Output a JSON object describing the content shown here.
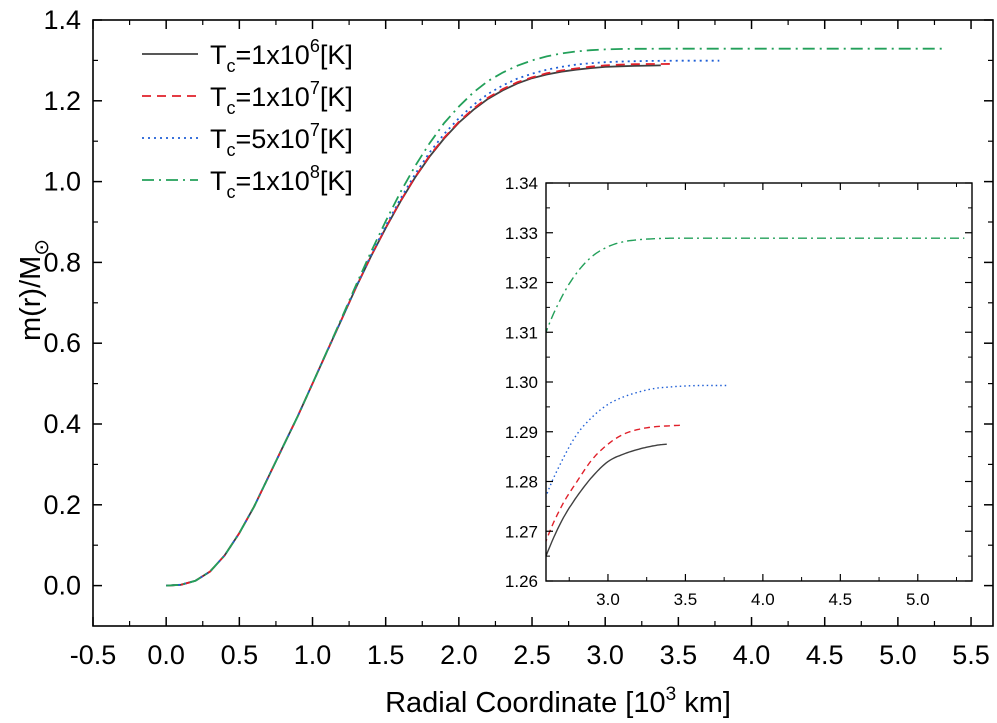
{
  "chart_data": [
    {
      "type": "line",
      "xlabel": {
        "main": "Radial Coordinate [10",
        "sup": "3",
        "tail": " km]"
      },
      "ylabel": {
        "main": "m(r)/M",
        "sub": "⊙"
      },
      "xlim": [
        -0.5,
        5.65
      ],
      "ylim": [
        -0.1,
        1.4
      ],
      "xticks": [
        "-0.5",
        "0.0",
        "0.5",
        "1.0",
        "1.5",
        "2.0",
        "2.5",
        "3.0",
        "3.5",
        "4.0",
        "4.5",
        "5.0",
        "5.5"
      ],
      "yticks": [
        "0.0",
        "0.2",
        "0.4",
        "0.6",
        "0.8",
        "1.0",
        "1.2",
        "1.4"
      ],
      "legend_position": "top-left",
      "series": [
        {
          "legend": {
            "pre": "T",
            "sub": "c",
            "mid": "=1x10",
            "sup": "6",
            "post": "[K]"
          },
          "color": "#404040",
          "dash": "solid",
          "x": [
            0.0,
            0.1,
            0.2,
            0.3,
            0.4,
            0.5,
            0.6,
            0.7,
            0.8,
            0.9,
            1.0,
            1.1,
            1.2,
            1.3,
            1.4,
            1.5,
            1.6,
            1.7,
            1.8,
            1.9,
            2.0,
            2.1,
            2.2,
            2.3,
            2.4,
            2.5,
            2.6,
            2.7,
            2.8,
            2.9,
            3.0,
            3.1,
            3.2,
            3.3,
            3.38
          ],
          "y": [
            0.0,
            0.002,
            0.012,
            0.035,
            0.075,
            0.13,
            0.195,
            0.27,
            0.345,
            0.42,
            0.5,
            0.58,
            0.66,
            0.74,
            0.815,
            0.885,
            0.95,
            1.01,
            1.062,
            1.107,
            1.146,
            1.178,
            1.205,
            1.226,
            1.243,
            1.256,
            1.265,
            1.272,
            1.277,
            1.281,
            1.284,
            1.2855,
            1.2865,
            1.2872,
            1.2875
          ]
        },
        {
          "legend": {
            "pre": "T",
            "sub": "c",
            "mid": "=1x10",
            "sup": "7",
            "post": "[K]"
          },
          "color": "#e0202a",
          "dash": "dashed",
          "x": [
            0.0,
            0.1,
            0.2,
            0.3,
            0.4,
            0.5,
            0.6,
            0.7,
            0.8,
            0.9,
            1.0,
            1.1,
            1.2,
            1.3,
            1.4,
            1.5,
            1.6,
            1.7,
            1.8,
            1.9,
            2.0,
            2.1,
            2.2,
            2.3,
            2.4,
            2.5,
            2.6,
            2.7,
            2.8,
            2.9,
            3.0,
            3.1,
            3.2,
            3.3,
            3.4,
            3.47
          ],
          "y": [
            0.0,
            0.002,
            0.012,
            0.035,
            0.075,
            0.13,
            0.195,
            0.27,
            0.345,
            0.42,
            0.5,
            0.58,
            0.66,
            0.74,
            0.815,
            0.886,
            0.951,
            1.011,
            1.064,
            1.109,
            1.148,
            1.181,
            1.208,
            1.229,
            1.246,
            1.258,
            1.268,
            1.275,
            1.28,
            1.2845,
            1.2875,
            1.2895,
            1.2905,
            1.291,
            1.2912,
            1.2913
          ]
        },
        {
          "legend": {
            "pre": "T",
            "sub": "c",
            "mid": "=5x10",
            "sup": "7",
            "post": "[K]"
          },
          "color": "#1f5fd6",
          "dash": "dotted",
          "x": [
            0.0,
            0.1,
            0.2,
            0.3,
            0.4,
            0.5,
            0.6,
            0.7,
            0.8,
            0.9,
            1.0,
            1.1,
            1.2,
            1.3,
            1.4,
            1.5,
            1.6,
            1.7,
            1.8,
            1.9,
            2.0,
            2.1,
            2.2,
            2.3,
            2.4,
            2.5,
            2.6,
            2.7,
            2.8,
            2.9,
            3.0,
            3.1,
            3.2,
            3.3,
            3.4,
            3.5,
            3.6,
            3.7,
            3.78
          ],
          "y": [
            0.0,
            0.002,
            0.012,
            0.035,
            0.075,
            0.13,
            0.195,
            0.27,
            0.345,
            0.42,
            0.5,
            0.58,
            0.66,
            0.741,
            0.818,
            0.89,
            0.957,
            1.018,
            1.072,
            1.118,
            1.157,
            1.19,
            1.217,
            1.238,
            1.255,
            1.267,
            1.277,
            1.284,
            1.2895,
            1.293,
            1.2955,
            1.297,
            1.298,
            1.2987,
            1.299,
            1.2992,
            1.2993,
            1.2993,
            1.2993
          ]
        },
        {
          "legend": {
            "pre": "T",
            "sub": "c",
            "mid": "=1x10",
            "sup": "8",
            "post": "[K]"
          },
          "color": "#23a05a",
          "dash": "dashdot",
          "x": [
            0.0,
            0.1,
            0.2,
            0.3,
            0.4,
            0.5,
            0.6,
            0.7,
            0.8,
            0.9,
            1.0,
            1.1,
            1.2,
            1.3,
            1.4,
            1.5,
            1.6,
            1.7,
            1.8,
            1.9,
            2.0,
            2.1,
            2.2,
            2.3,
            2.4,
            2.5,
            2.6,
            2.7,
            2.8,
            2.9,
            3.0,
            3.1,
            3.2,
            3.3,
            3.4,
            3.6,
            4.0,
            4.5,
            5.0,
            5.3
          ],
          "y": [
            0.0,
            0.002,
            0.012,
            0.035,
            0.075,
            0.13,
            0.195,
            0.27,
            0.345,
            0.42,
            0.5,
            0.581,
            0.663,
            0.746,
            0.826,
            0.902,
            0.973,
            1.038,
            1.095,
            1.145,
            1.186,
            1.221,
            1.249,
            1.27,
            1.287,
            1.3,
            1.31,
            1.317,
            1.322,
            1.3253,
            1.3272,
            1.3282,
            1.3286,
            1.3288,
            1.3289,
            1.3289,
            1.3289,
            1.3289,
            1.3289,
            1.3289
          ]
        }
      ]
    },
    {
      "type": "line",
      "inset": true,
      "xlim": [
        2.6,
        5.35
      ],
      "ylim": [
        1.26,
        1.34
      ],
      "xticks": [
        "3.0",
        "3.5",
        "4.0",
        "4.5",
        "5.0"
      ],
      "yticks": [
        "1.26",
        "1.27",
        "1.28",
        "1.29",
        "1.30",
        "1.31",
        "1.32",
        "1.33",
        "1.34"
      ],
      "series_ref": "same as main chart"
    }
  ]
}
